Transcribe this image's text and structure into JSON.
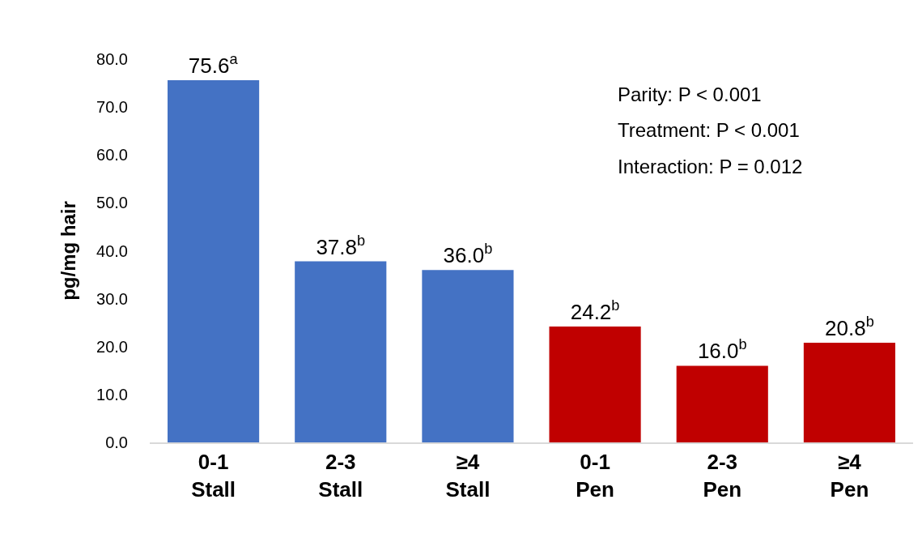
{
  "chart_data": {
    "type": "bar",
    "ylabel": "pg/mg hair",
    "categories": [
      "0-1\nStall",
      "2-3\nStall",
      "≥4\nStall",
      "0-1\nPen",
      "2-3\nPen",
      "≥4\nPen"
    ],
    "values": [
      75.6,
      37.8,
      36.0,
      24.2,
      16.0,
      20.8
    ],
    "colors": [
      "#4472c4",
      "#4472c4",
      "#4472c4",
      "#c00000",
      "#c00000",
      "#c00000"
    ],
    "value_labels": [
      "75.6$^{a}$",
      "37.8$^{b}$",
      "36.0$^{b}$",
      "24.2$^{b}$",
      "16.0$^{b}$",
      "20.8$^{b}$"
    ],
    "ylim": [
      0,
      80
    ],
    "yticks": [
      {
        "value": 0,
        "label": "0.0"
      },
      {
        "value": 10,
        "label": "10.0"
      },
      {
        "value": 20,
        "label": "20.0"
      },
      {
        "value": 30,
        "label": "30.0"
      },
      {
        "value": 40,
        "label": "40.0"
      },
      {
        "value": 50,
        "label": "50.0"
      },
      {
        "value": 60,
        "label": "60.0"
      },
      {
        "value": 70,
        "label": "70.0"
      },
      {
        "value": 80,
        "label": "80.0"
      }
    ],
    "annotations": [
      "Parity: P < 0.001",
      "Treatment: P < 0.001",
      "Interaction: P = 0.012"
    ]
  }
}
